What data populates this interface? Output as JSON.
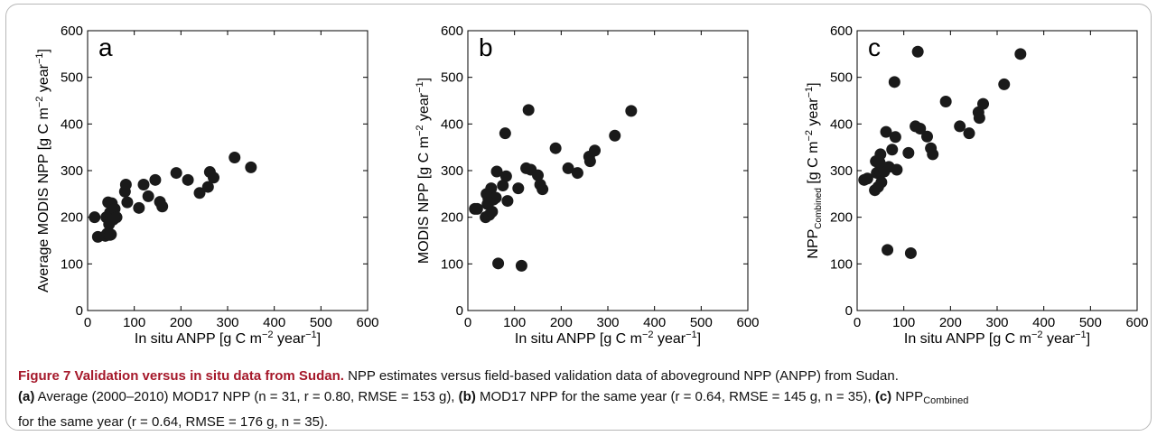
{
  "chart_data": [
    {
      "type": "scatter",
      "panel_label": "a",
      "xlabel": "In situ ANPP [g C m",
      "ylabel": "Average MODIS NPP [g C m",
      "xlim": [
        0,
        600
      ],
      "ylim": [
        0,
        600
      ],
      "xticks": [
        0,
        100,
        200,
        300,
        400,
        500,
        600
      ],
      "yticks": [
        0,
        100,
        200,
        300,
        400,
        500,
        600
      ],
      "grid": false,
      "points": [
        {
          "x": 15,
          "y": 200
        },
        {
          "x": 22,
          "y": 158
        },
        {
          "x": 38,
          "y": 160
        },
        {
          "x": 40,
          "y": 200
        },
        {
          "x": 42,
          "y": 165
        },
        {
          "x": 44,
          "y": 232
        },
        {
          "x": 46,
          "y": 185
        },
        {
          "x": 48,
          "y": 210
        },
        {
          "x": 50,
          "y": 163
        },
        {
          "x": 52,
          "y": 230
        },
        {
          "x": 55,
          "y": 195
        },
        {
          "x": 58,
          "y": 218
        },
        {
          "x": 62,
          "y": 200
        },
        {
          "x": 80,
          "y": 255
        },
        {
          "x": 82,
          "y": 270
        },
        {
          "x": 85,
          "y": 232
        },
        {
          "x": 110,
          "y": 220
        },
        {
          "x": 120,
          "y": 270
        },
        {
          "x": 130,
          "y": 245
        },
        {
          "x": 145,
          "y": 280
        },
        {
          "x": 155,
          "y": 233
        },
        {
          "x": 160,
          "y": 223
        },
        {
          "x": 190,
          "y": 295
        },
        {
          "x": 215,
          "y": 280
        },
        {
          "x": 240,
          "y": 252
        },
        {
          "x": 258,
          "y": 265
        },
        {
          "x": 262,
          "y": 297
        },
        {
          "x": 270,
          "y": 285
        },
        {
          "x": 315,
          "y": 328
        },
        {
          "x": 350,
          "y": 307
        },
        {
          "x": 48,
          "y": 162
        }
      ]
    },
    {
      "type": "scatter",
      "panel_label": "b",
      "xlabel": "In situ ANPP [g C m",
      "ylabel": "MODIS NPP [g C m",
      "xlim": [
        0,
        600
      ],
      "ylim": [
        0,
        600
      ],
      "xticks": [
        0,
        100,
        200,
        300,
        400,
        500,
        600
      ],
      "yticks": [
        0,
        100,
        200,
        300,
        400,
        500,
        600
      ],
      "grid": false,
      "points": [
        {
          "x": 15,
          "y": 218
        },
        {
          "x": 20,
          "y": 218
        },
        {
          "x": 38,
          "y": 200
        },
        {
          "x": 40,
          "y": 250
        },
        {
          "x": 42,
          "y": 228
        },
        {
          "x": 46,
          "y": 205
        },
        {
          "x": 50,
          "y": 262
        },
        {
          "x": 52,
          "y": 212
        },
        {
          "x": 55,
          "y": 238
        },
        {
          "x": 58,
          "y": 242
        },
        {
          "x": 62,
          "y": 298
        },
        {
          "x": 65,
          "y": 101
        },
        {
          "x": 75,
          "y": 268
        },
        {
          "x": 80,
          "y": 380
        },
        {
          "x": 82,
          "y": 288
        },
        {
          "x": 85,
          "y": 235
        },
        {
          "x": 108,
          "y": 262
        },
        {
          "x": 115,
          "y": 96
        },
        {
          "x": 125,
          "y": 305
        },
        {
          "x": 130,
          "y": 430
        },
        {
          "x": 135,
          "y": 302
        },
        {
          "x": 150,
          "y": 290
        },
        {
          "x": 155,
          "y": 270
        },
        {
          "x": 160,
          "y": 260
        },
        {
          "x": 188,
          "y": 348
        },
        {
          "x": 215,
          "y": 305
        },
        {
          "x": 235,
          "y": 295
        },
        {
          "x": 260,
          "y": 330
        },
        {
          "x": 262,
          "y": 320
        },
        {
          "x": 272,
          "y": 343
        },
        {
          "x": 315,
          "y": 375
        },
        {
          "x": 350,
          "y": 428
        },
        {
          "x": 44,
          "y": 240
        },
        {
          "x": 60,
          "y": 242
        },
        {
          "x": 45,
          "y": 232
        }
      ]
    },
    {
      "type": "scatter",
      "panel_label": "c",
      "xlabel": "In situ ANPP [g C m",
      "ylabel": "NPP",
      "ylabel_sub": "Combined",
      "xlim": [
        0,
        600
      ],
      "ylim": [
        0,
        600
      ],
      "xticks": [
        0,
        100,
        200,
        300,
        400,
        500,
        600
      ],
      "yticks": [
        0,
        100,
        200,
        300,
        400,
        500,
        600
      ],
      "grid": false,
      "points": [
        {
          "x": 15,
          "y": 280
        },
        {
          "x": 22,
          "y": 283
        },
        {
          "x": 38,
          "y": 258
        },
        {
          "x": 40,
          "y": 320
        },
        {
          "x": 42,
          "y": 295
        },
        {
          "x": 45,
          "y": 265
        },
        {
          "x": 48,
          "y": 300
        },
        {
          "x": 50,
          "y": 335
        },
        {
          "x": 52,
          "y": 275
        },
        {
          "x": 55,
          "y": 308
        },
        {
          "x": 58,
          "y": 298
        },
        {
          "x": 62,
          "y": 383
        },
        {
          "x": 65,
          "y": 130
        },
        {
          "x": 68,
          "y": 308
        },
        {
          "x": 75,
          "y": 345
        },
        {
          "x": 80,
          "y": 490
        },
        {
          "x": 82,
          "y": 372
        },
        {
          "x": 85,
          "y": 302
        },
        {
          "x": 110,
          "y": 338
        },
        {
          "x": 115,
          "y": 123
        },
        {
          "x": 125,
          "y": 395
        },
        {
          "x": 130,
          "y": 555
        },
        {
          "x": 135,
          "y": 390
        },
        {
          "x": 150,
          "y": 373
        },
        {
          "x": 158,
          "y": 348
        },
        {
          "x": 162,
          "y": 335
        },
        {
          "x": 190,
          "y": 448
        },
        {
          "x": 220,
          "y": 395
        },
        {
          "x": 240,
          "y": 380
        },
        {
          "x": 260,
          "y": 425
        },
        {
          "x": 262,
          "y": 413
        },
        {
          "x": 270,
          "y": 443
        },
        {
          "x": 315,
          "y": 485
        },
        {
          "x": 350,
          "y": 550
        },
        {
          "x": 48,
          "y": 318
        }
      ]
    }
  ],
  "caption": {
    "title": "Figure 7 Validation versus in situ data from Sudan.",
    "line1_rest": " NPP estimates versus field-based validation data of aboveground NPP (ANPP) from Sudan.",
    "a_label": "(a)",
    "a_text": " Average (2000–2010) MOD17 NPP (n = 31, r = 0.80, RMSE = 153 g), ",
    "b_label": "(b)",
    "b_text": " MOD17 NPP for the same year (r = 0.64, RMSE = 145 g, n = 35), ",
    "c_label": "(c)",
    "c_npp": " NPP",
    "c_sub": "Combined",
    "c_text": "for the same year (r = 0.64, RMSE = 176 g, n = 35)."
  }
}
